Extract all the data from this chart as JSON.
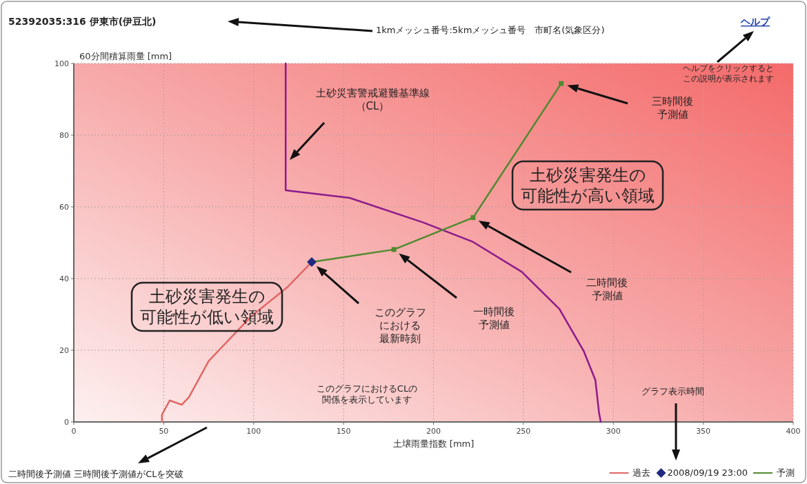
{
  "chart_data": {
    "type": "line",
    "title": "52392035:316 伊東市(伊豆北)",
    "xlabel": "土壌雨量指数 [mm]",
    "ylabel": "60分間積算雨量 [mm]",
    "xlim": [
      0,
      400
    ],
    "ylim": [
      0,
      100
    ],
    "xticks": [
      0,
      50,
      100,
      150,
      200,
      250,
      300,
      350,
      400
    ],
    "yticks": [
      0,
      20,
      40,
      60,
      80,
      100
    ],
    "grid": true,
    "legend": "bottom right",
    "series": [
      {
        "name": "過去",
        "color": "#e06666",
        "marker": "none",
        "x": [
          49,
          49,
          53.3,
          60,
          64,
          75,
          98.5,
          119,
          132.3
        ],
        "values": [
          0,
          2,
          6,
          4.8,
          6.9,
          17,
          29.4,
          37.7,
          44.6
        ]
      },
      {
        "name": "2008/09/19 23:00",
        "type": "scatter",
        "color": "#1f2a80",
        "marker": "diamond",
        "x": [
          132.3
        ],
        "values": [
          44.6
        ]
      },
      {
        "name": "予測",
        "color": "#4f8a2f",
        "marker": "square",
        "x": [
          132.3,
          178,
          222,
          271
        ],
        "values": [
          44.6,
          48.1,
          57,
          94.4
        ]
      },
      {
        "color": "#8b1a8b",
        "marker": "none",
        "x": [
          117.8,
          117.8,
          153.4,
          194.5,
          222,
          249,
          270,
          283.5,
          290,
          292,
          293
        ],
        "values": [
          100,
          64.6,
          62.5,
          55.6,
          50.2,
          41.9,
          31.5,
          19.8,
          11.7,
          2.7,
          0
        ]
      }
    ],
    "annotations": [
      "1kmメッシュ番号:5kmメッシュ番号　市町名(気象区分)",
      "ヘルプ",
      "ヘルプをクリックするとこの説明が表示されます",
      "土砂災害警戒避難基準線（CL）",
      "土砂災害発生の可能性が高い領域",
      "土砂災害発生の可能性が低い領域",
      "このグラフにおける最新時刻",
      "一時間後予測値",
      "二時間後予測値",
      "三時間後予測値",
      "このグラフにおけるCLの関係を表示しています",
      "二時間後予測値 三時間後予測値がCLを突破",
      "グラフ表示時間"
    ]
  }
}
